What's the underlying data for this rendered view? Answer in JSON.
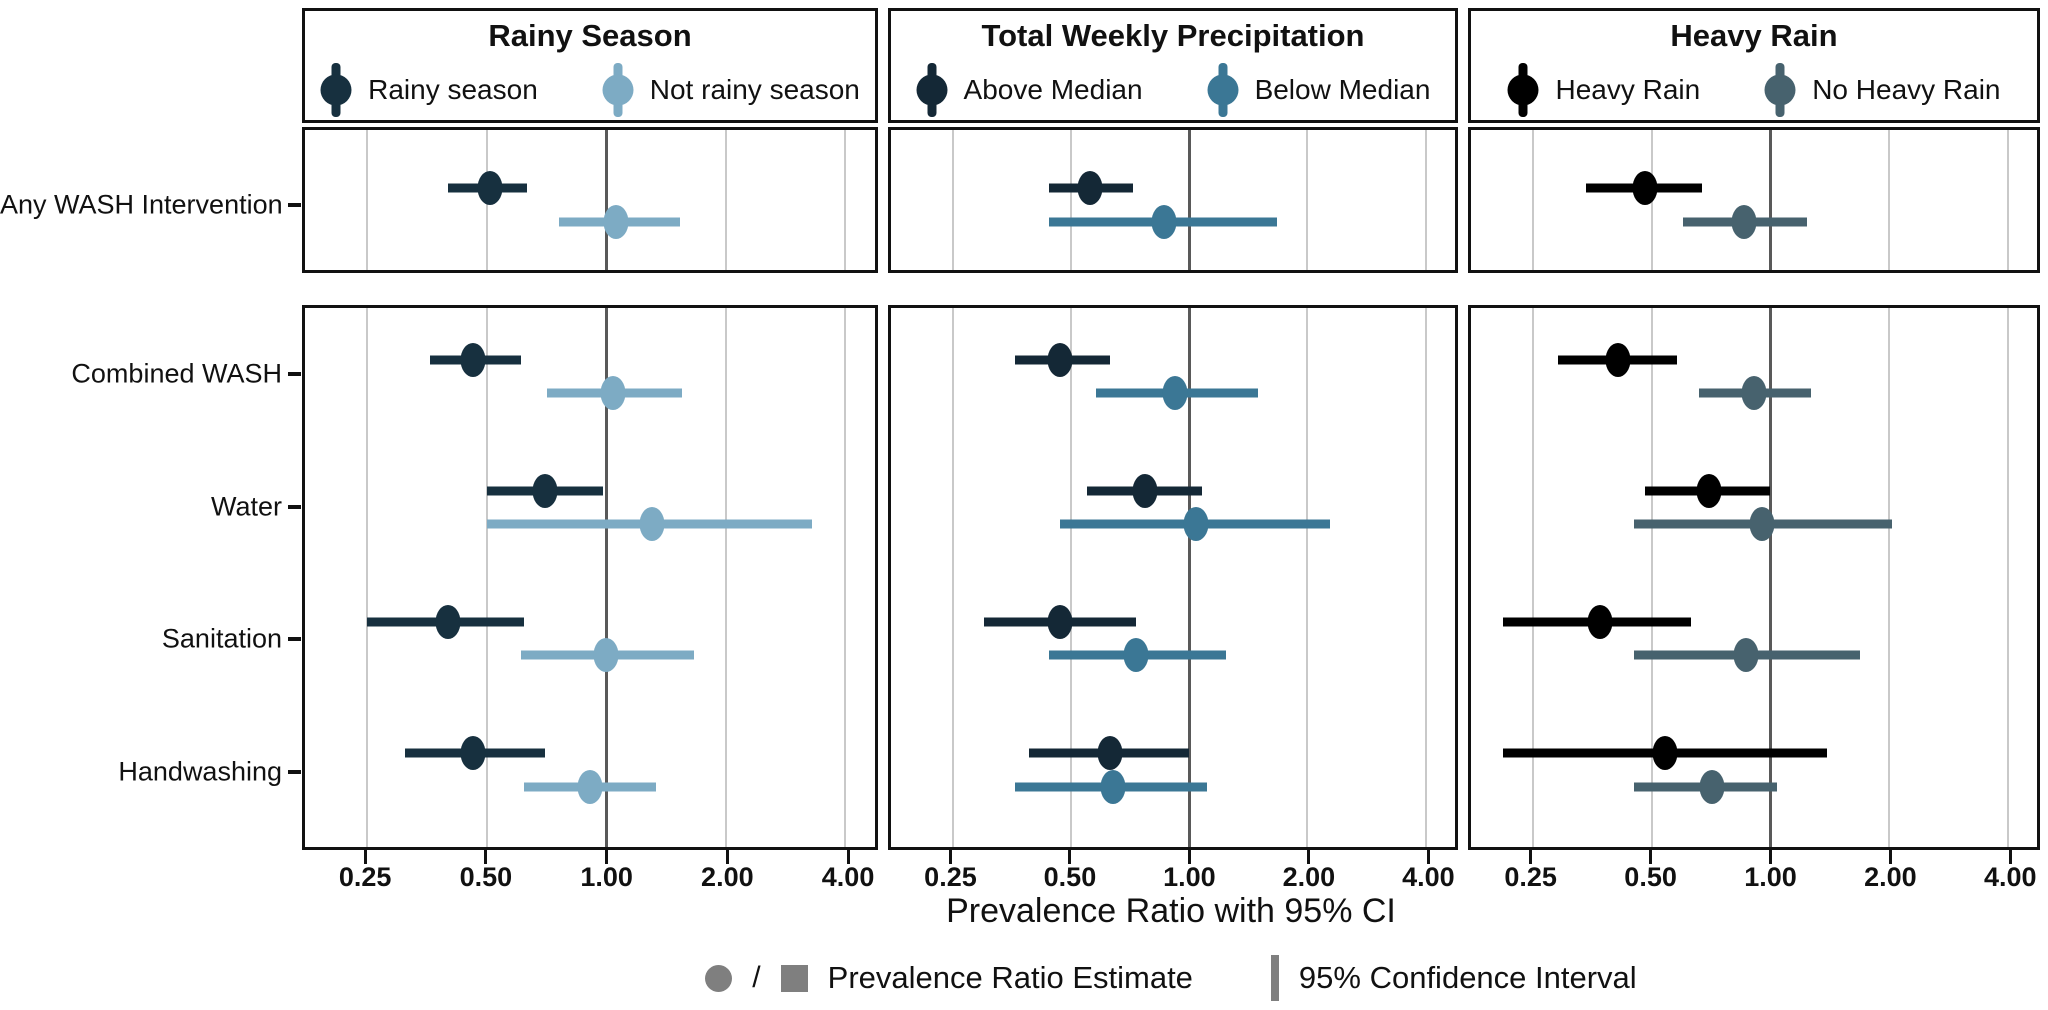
{
  "figure": {
    "bottom_legend": {
      "slash": "/",
      "estimate_label": "Prevalence Ratio Estimate",
      "ci_label": "95% Confidence Interval",
      "symbol_color": "#7f7f7f"
    }
  },
  "chart_data": {
    "type": "scatter",
    "variant": "forest-plot",
    "x_axis": {
      "label": "Prevalence Ratio with 95% CI",
      "scale": "log2",
      "ticks": [
        0.25,
        0.5,
        1.0,
        2.0,
        4.0
      ],
      "tick_labels": [
        "0.25",
        "0.50",
        "1.00",
        "2.00",
        "4.00"
      ],
      "range": [
        0.174,
        4.75
      ],
      "reference_line": 1.0,
      "grid": true
    },
    "categories_top": [
      "Any WASH Intervention"
    ],
    "categories_bottom": [
      "Combined WASH",
      "Water",
      "Sanitation",
      "Handwashing"
    ],
    "panels": [
      {
        "title": "Rainy Season",
        "series": [
          {
            "name": "Rainy season",
            "color": "#17303f"
          },
          {
            "name": "Not rainy season",
            "color": "#7dabc4"
          }
        ],
        "rows_top": [
          {
            "category": "Any WASH Intervention",
            "points": [
              {
                "series": "Rainy season",
                "estimate": 0.51,
                "ci_low": 0.4,
                "ci_high": 0.63
              },
              {
                "series": "Not rainy season",
                "estimate": 1.06,
                "ci_low": 0.76,
                "ci_high": 1.53
              }
            ]
          }
        ],
        "rows_bottom": [
          {
            "category": "Combined WASH",
            "points": [
              {
                "series": "Rainy season",
                "estimate": 0.46,
                "ci_low": 0.36,
                "ci_high": 0.61
              },
              {
                "series": "Not rainy season",
                "estimate": 1.04,
                "ci_low": 0.71,
                "ci_high": 1.55
              }
            ]
          },
          {
            "category": "Water",
            "points": [
              {
                "series": "Rainy season",
                "estimate": 0.7,
                "ci_low": 0.5,
                "ci_high": 0.98
              },
              {
                "series": "Not rainy season",
                "estimate": 1.3,
                "ci_low": 0.5,
                "ci_high": 3.3
              }
            ]
          },
          {
            "category": "Sanitation",
            "points": [
              {
                "series": "Rainy season",
                "estimate": 0.4,
                "ci_low": 0.25,
                "ci_high": 0.62
              },
              {
                "series": "Not rainy season",
                "estimate": 1.0,
                "ci_low": 0.61,
                "ci_high": 1.66
              }
            ]
          },
          {
            "category": "Handwashing",
            "points": [
              {
                "series": "Rainy season",
                "estimate": 0.46,
                "ci_low": 0.31,
                "ci_high": 0.7
              },
              {
                "series": "Not rainy season",
                "estimate": 0.91,
                "ci_low": 0.62,
                "ci_high": 1.33
              }
            ]
          }
        ]
      },
      {
        "title": "Total Weekly Precipitation",
        "series": [
          {
            "name": "Above Median",
            "color": "#142836"
          },
          {
            "name": "Below Median",
            "color": "#3b7795"
          }
        ],
        "rows_top": [
          {
            "category": "Any WASH Intervention",
            "points": [
              {
                "series": "Above Median",
                "estimate": 0.56,
                "ci_low": 0.44,
                "ci_high": 0.72
              },
              {
                "series": "Below Median",
                "estimate": 0.86,
                "ci_low": 0.44,
                "ci_high": 1.67
              }
            ]
          }
        ],
        "rows_bottom": [
          {
            "category": "Combined WASH",
            "points": [
              {
                "series": "Above Median",
                "estimate": 0.47,
                "ci_low": 0.36,
                "ci_high": 0.63
              },
              {
                "series": "Below Median",
                "estimate": 0.92,
                "ci_low": 0.58,
                "ci_high": 1.5
              }
            ]
          },
          {
            "category": "Water",
            "points": [
              {
                "series": "Above Median",
                "estimate": 0.77,
                "ci_low": 0.55,
                "ci_high": 1.08
              },
              {
                "series": "Below Median",
                "estimate": 1.04,
                "ci_low": 0.47,
                "ci_high": 2.28
              }
            ]
          },
          {
            "category": "Sanitation",
            "points": [
              {
                "series": "Above Median",
                "estimate": 0.47,
                "ci_low": 0.3,
                "ci_high": 0.73
              },
              {
                "series": "Below Median",
                "estimate": 0.73,
                "ci_low": 0.44,
                "ci_high": 1.24
              }
            ]
          },
          {
            "category": "Handwashing",
            "points": [
              {
                "series": "Above Median",
                "estimate": 0.63,
                "ci_low": 0.39,
                "ci_high": 1.0
              },
              {
                "series": "Below Median",
                "estimate": 0.64,
                "ci_low": 0.36,
                "ci_high": 1.11
              }
            ]
          }
        ]
      },
      {
        "title": "Heavy Rain",
        "series": [
          {
            "name": "Heavy Rain",
            "color": "#000000"
          },
          {
            "name": "No Heavy Rain",
            "color": "#47626e"
          }
        ],
        "rows_top": [
          {
            "category": "Any WASH Intervention",
            "points": [
              {
                "series": "Heavy Rain",
                "estimate": 0.48,
                "ci_low": 0.34,
                "ci_high": 0.67
              },
              {
                "series": "No Heavy Rain",
                "estimate": 0.86,
                "ci_low": 0.6,
                "ci_high": 1.24
              }
            ]
          }
        ],
        "rows_bottom": [
          {
            "category": "Combined WASH",
            "points": [
              {
                "series": "Heavy Rain",
                "estimate": 0.41,
                "ci_low": 0.29,
                "ci_high": 0.58
              },
              {
                "series": "No Heavy Rain",
                "estimate": 0.91,
                "ci_low": 0.66,
                "ci_high": 1.27
              }
            ]
          },
          {
            "category": "Water",
            "points": [
              {
                "series": "Heavy Rain",
                "estimate": 0.7,
                "ci_low": 0.48,
                "ci_high": 1.0
              },
              {
                "series": "No Heavy Rain",
                "estimate": 0.95,
                "ci_low": 0.45,
                "ci_high": 2.04
              }
            ]
          },
          {
            "category": "Sanitation",
            "points": [
              {
                "series": "Heavy Rain",
                "estimate": 0.37,
                "ci_low": 0.21,
                "ci_high": 0.63
              },
              {
                "series": "No Heavy Rain",
                "estimate": 0.87,
                "ci_low": 0.45,
                "ci_high": 1.69
              }
            ]
          },
          {
            "category": "Handwashing",
            "points": [
              {
                "series": "Heavy Rain",
                "estimate": 0.54,
                "ci_low": 0.21,
                "ci_high": 1.39
              },
              {
                "series": "No Heavy Rain",
                "estimate": 0.71,
                "ci_low": 0.45,
                "ci_high": 1.04
              }
            ]
          }
        ]
      }
    ],
    "legend_position": "top-inside-panel-header",
    "colors": {
      "gridline": "#c9c9c9",
      "reference_line": "#595959",
      "panel_border": "#111111"
    }
  }
}
